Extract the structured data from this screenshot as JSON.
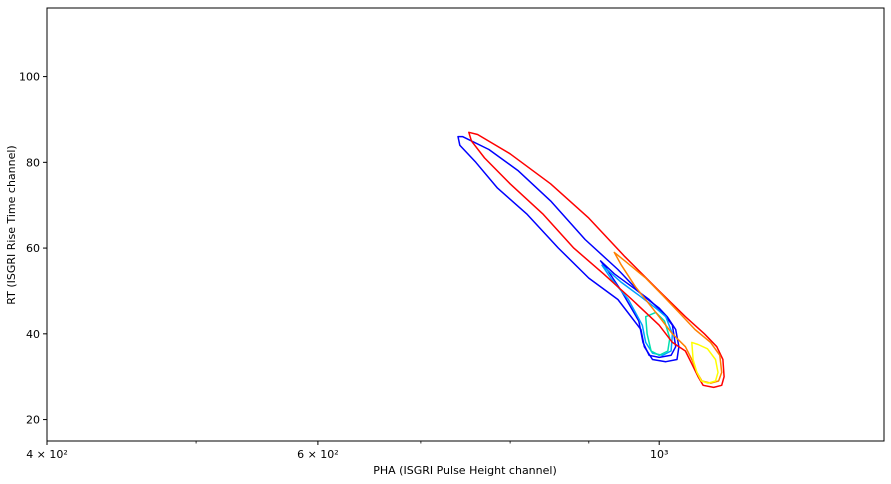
{
  "chart_data": {
    "type": "contour",
    "title": "",
    "xlabel": "PHA (ISGRI Pulse Height channel)",
    "ylabel": "RT (ISGRI Rise Time channel)",
    "x_scale": "log",
    "xlim": [
      400,
      1400
    ],
    "ylim": [
      15,
      116
    ],
    "grid": false,
    "x_ticks": [
      {
        "value": 400,
        "label": "4 × 10²"
      },
      {
        "value": 600,
        "label": "6 × 10²"
      },
      {
        "value": 1000,
        "label": "10³"
      }
    ],
    "x_minor_ticks": [
      500,
      700,
      800,
      900
    ],
    "y_ticks": [
      {
        "value": 20,
        "label": "20"
      },
      {
        "value": 40,
        "label": "40"
      },
      {
        "value": 60,
        "label": "60"
      },
      {
        "value": 80,
        "label": "80"
      },
      {
        "value": 100,
        "label": "100"
      }
    ],
    "contours": [
      {
        "color": "#0000ff",
        "points": [
          [
            740,
            86
          ],
          [
            745,
            86
          ],
          [
            775,
            83
          ],
          [
            810,
            78
          ],
          [
            850,
            71
          ],
          [
            895,
            62
          ],
          [
            940,
            55
          ],
          [
            975,
            49
          ],
          [
            1000,
            46
          ],
          [
            1012,
            44
          ],
          [
            1025,
            41
          ],
          [
            1030,
            37
          ],
          [
            1027,
            34
          ],
          [
            1010,
            33.5
          ],
          [
            990,
            34
          ],
          [
            978,
            37
          ],
          [
            973,
            41
          ],
          [
            940,
            48
          ],
          [
            900,
            53
          ],
          [
            860,
            60
          ],
          [
            820,
            68
          ],
          [
            785,
            74
          ],
          [
            760,
            80
          ],
          [
            742,
            84
          ],
          [
            740,
            86
          ]
        ]
      },
      {
        "color": "#0000ff",
        "points": [
          [
            916,
            57
          ],
          [
            935,
            54
          ],
          [
            960,
            51
          ],
          [
            985,
            48
          ],
          [
            1005,
            45
          ],
          [
            1020,
            42
          ],
          [
            1025,
            37
          ],
          [
            1018,
            35
          ],
          [
            1000,
            34.5
          ],
          [
            985,
            35
          ],
          [
            976,
            38
          ],
          [
            970,
            43
          ],
          [
            945,
            50
          ],
          [
            925,
            55
          ],
          [
            916,
            57
          ]
        ]
      },
      {
        "color": "#00a0ff",
        "points": [
          [
            918,
            56
          ],
          [
            945,
            52
          ],
          [
            970,
            49
          ],
          [
            995,
            46
          ],
          [
            1010,
            44
          ],
          [
            1020,
            40
          ],
          [
            1018,
            36
          ],
          [
            1005,
            35
          ],
          [
            990,
            35.5
          ],
          [
            980,
            38
          ],
          [
            975,
            42
          ],
          [
            955,
            48
          ],
          [
            930,
            53
          ],
          [
            918,
            56
          ]
        ]
      },
      {
        "color": "#00e0b0",
        "points": [
          [
            980,
            44
          ],
          [
            995,
            45
          ],
          [
            1008,
            43
          ],
          [
            1016,
            39
          ],
          [
            1013,
            36
          ],
          [
            1000,
            35
          ],
          [
            988,
            36
          ],
          [
            982,
            40
          ],
          [
            980,
            44
          ]
        ]
      },
      {
        "color": "#ff0000",
        "points": [
          [
            752,
            87
          ],
          [
            762,
            86.5
          ],
          [
            800,
            82
          ],
          [
            850,
            75
          ],
          [
            900,
            67
          ],
          [
            950,
            58
          ],
          [
            1000,
            50
          ],
          [
            1040,
            44
          ],
          [
            1070,
            40
          ],
          [
            1090,
            37
          ],
          [
            1100,
            34
          ],
          [
            1102,
            30
          ],
          [
            1098,
            28
          ],
          [
            1085,
            27.5
          ],
          [
            1068,
            28
          ],
          [
            1060,
            30
          ],
          [
            1050,
            33
          ],
          [
            1040,
            36
          ],
          [
            1020,
            38
          ],
          [
            1000,
            42
          ],
          [
            960,
            48
          ],
          [
            920,
            54
          ],
          [
            880,
            60
          ],
          [
            840,
            68
          ],
          [
            800,
            75
          ],
          [
            770,
            81
          ],
          [
            755,
            85
          ],
          [
            752,
            87
          ]
        ]
      },
      {
        "color": "#ff8000",
        "points": [
          [
            935,
            59
          ],
          [
            950,
            57
          ],
          [
            980,
            53
          ],
          [
            1005,
            49
          ],
          [
            1030,
            45
          ],
          [
            1055,
            41
          ],
          [
            1080,
            38
          ],
          [
            1095,
            35
          ],
          [
            1098,
            31
          ],
          [
            1093,
            29
          ],
          [
            1080,
            28.5
          ],
          [
            1066,
            29
          ],
          [
            1058,
            31
          ],
          [
            1050,
            34
          ],
          [
            1040,
            37
          ],
          [
            1020,
            40
          ],
          [
            995,
            45
          ],
          [
            965,
            51
          ],
          [
            945,
            56
          ],
          [
            935,
            59
          ]
        ]
      },
      {
        "color": "#ffff00",
        "points": [
          [
            1050,
            38
          ],
          [
            1060,
            37.5
          ],
          [
            1075,
            36.5
          ],
          [
            1088,
            34
          ],
          [
            1092,
            31
          ],
          [
            1088,
            29
          ],
          [
            1076,
            28.5
          ],
          [
            1065,
            29
          ],
          [
            1058,
            31
          ],
          [
            1052,
            34
          ],
          [
            1050,
            38
          ]
        ]
      }
    ]
  }
}
